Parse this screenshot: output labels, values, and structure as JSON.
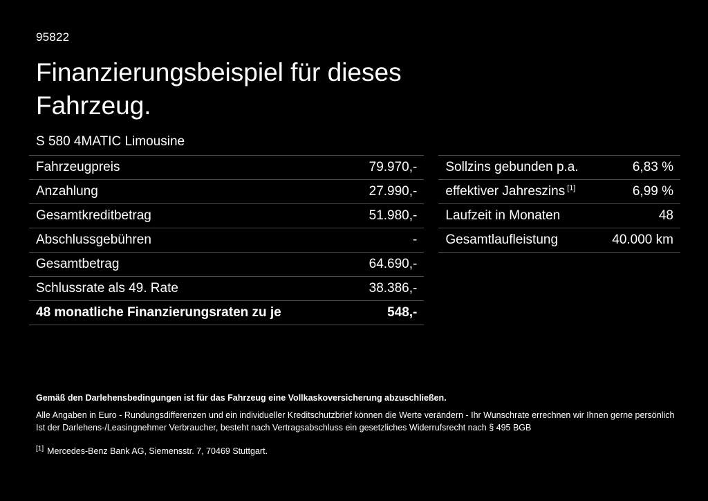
{
  "page": {
    "code": "95822",
    "title": "Finanzierungsbeispiel für dieses Fahrzeug.",
    "subtitle": "S 580 4MATIC Limousine"
  },
  "finance_table": {
    "rows": [
      {
        "label": "Fahrzeugpreis",
        "value": "79.970,-"
      },
      {
        "label": "Anzahlung",
        "value": "27.990,-"
      },
      {
        "label": "Gesamtkreditbetrag",
        "value": "51.980,-"
      },
      {
        "label": "Abschlussgebühren",
        "value": "-"
      },
      {
        "label": "Gesamtbetrag",
        "value": "64.690,-"
      },
      {
        "label": "Schlussrate als 49. Rate",
        "value": "38.386,-"
      },
      {
        "label": "48 monatliche Finanzierungsraten zu je",
        "value": "548,-"
      }
    ]
  },
  "conditions_table": {
    "rows": [
      {
        "label": "Sollzins gebunden p.a.",
        "value": "6,83 %"
      },
      {
        "label": "effektiver Jahreszins",
        "sup": "[1]",
        "value": "6,99 %"
      },
      {
        "label": "Laufzeit in Monaten",
        "value": "48"
      },
      {
        "label": "Gesamtlaufleistung",
        "value": "40.000 km"
      }
    ]
  },
  "footer": {
    "bold_note": "Gemäß den Darlehensbedingungen ist für das Fahrzeug eine Vollkaskoversicherung abzuschließen.",
    "note_line1": "Alle Angaben in Euro - Rundungsdifferenzen und ein individueller Kreditschutzbrief können die Werte verändern - Ihr Wunschrate errechnen wir Ihnen gerne persönlich",
    "note_line2": "Ist der Darlehens-/Leasingnehmer Verbraucher, besteht nach Vertragsabschluss ein gesetzliches Widerrufsrecht nach § 495 BGB",
    "footnote_marker": "[1]",
    "footnote_text": "Mercedes-Benz Bank AG, Siemensstr. 7, 70469 Stuttgart."
  }
}
